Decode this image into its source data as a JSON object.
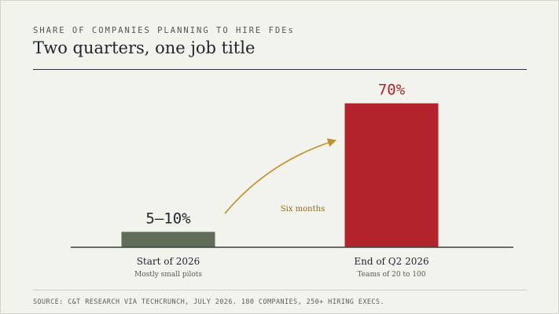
{
  "header": {
    "eyebrow": "SHARE OF COMPANIES PLANNING TO HIRE FDEs",
    "title": "Two quarters, one job title"
  },
  "footer": {
    "source": "SOURCE: C&T RESEARCH VIA TECHCRUNCH, JULY 2026. 180 COMPANIES, 250+ HIRING EXECS."
  },
  "colors": {
    "bar_start": "#5f6d59",
    "bar_end": "#b2232b",
    "value_start": "#1f2530",
    "value_end": "#b2232b",
    "arrow": "#c0902c",
    "baseline": "#3a3f45"
  },
  "chart_data": {
    "type": "bar",
    "title": "Two quarters, one job title",
    "subtitle": "SHARE OF COMPANIES PLANNING TO HIRE FDEs",
    "categories": [
      "Start of 2026",
      "End of Q2 2026"
    ],
    "category_notes": [
      "Mostly small pilots",
      "Teams of 20 to 100"
    ],
    "values": [
      7.5,
      70
    ],
    "value_ranges": [
      [
        5,
        10
      ],
      [
        70,
        70
      ]
    ],
    "value_labels": [
      "5–10%",
      "70%"
    ],
    "unit": "%",
    "ylim": [
      0,
      100
    ],
    "xlabel": "",
    "ylabel": "",
    "grid": false,
    "legend": "none",
    "annotation": {
      "text": "Six months",
      "kind": "arrow",
      "from": "Start of 2026",
      "to": "End of Q2 2026"
    }
  }
}
